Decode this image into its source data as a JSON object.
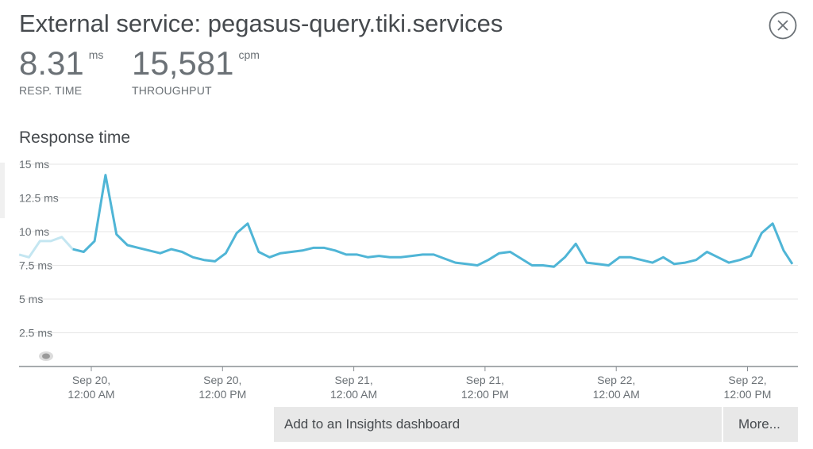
{
  "header": {
    "title": "External service: pegasus-query.tiki.services",
    "close_icon": "close-circle-icon"
  },
  "metrics": {
    "resp_time": {
      "value": "8.31",
      "unit": "ms",
      "label": "RESP. TIME"
    },
    "throughput": {
      "value": "15,581",
      "unit": "cpm",
      "label": "THROUGHPUT"
    }
  },
  "chart": {
    "title": "Response time"
  },
  "chart_data": {
    "type": "line",
    "title": "Response time",
    "xlabel": "",
    "ylabel": "",
    "ylim": [
      0,
      15
    ],
    "y_ticks": [
      {
        "value": 2.5,
        "label": "2.5 ms"
      },
      {
        "value": 5,
        "label": "5 ms"
      },
      {
        "value": 7.5,
        "label": "7.5 ms"
      },
      {
        "value": 10,
        "label": "10 ms"
      },
      {
        "value": 12.5,
        "label": "12.5 ms"
      },
      {
        "value": 15,
        "label": "15 ms"
      }
    ],
    "x_ticks": [
      {
        "hours": 0,
        "line1": "Sep 20,",
        "line2": "12:00 AM"
      },
      {
        "hours": 12,
        "line1": "Sep 20,",
        "line2": "12:00 PM"
      },
      {
        "hours": 24,
        "line1": "Sep 21,",
        "line2": "12:00 AM"
      },
      {
        "hours": 36,
        "line1": "Sep 21,",
        "line2": "12:00 PM"
      },
      {
        "hours": 48,
        "line1": "Sep 22,",
        "line2": "12:00 AM"
      },
      {
        "hours": 60,
        "line1": "Sep 22,",
        "line2": "12:00 PM"
      }
    ],
    "grid": true,
    "color": "#4fb5d6",
    "faded_color": "#c4e6f1",
    "series": [
      {
        "x_hours": [
          -6.6,
          -5.7,
          -4.7,
          -3.7,
          -2.7,
          -1.7,
          -0.7,
          0.3,
          1.3,
          2.3,
          3.3,
          4.3,
          5.3,
          6.3,
          7.3,
          8.3,
          9.3,
          10.3,
          11.3,
          12.3,
          13.3,
          14.3,
          15.3,
          16.3,
          17.3,
          18.3,
          19.3,
          20.3,
          21.3,
          22.3,
          23.3,
          24.3,
          25.3,
          26.3,
          27.3,
          28.3,
          29.3,
          30.3,
          31.3,
          32.3,
          33.3,
          34.3,
          35.3,
          36.3,
          37.3,
          38.3,
          39.3,
          40.3,
          41.3,
          42.3,
          43.3,
          44.3,
          45.3,
          46.3,
          47.3,
          48.3,
          49.3,
          50.3,
          51.3,
          52.3,
          53.3,
          54.3,
          55.3,
          56.3,
          57.3,
          58.3,
          59.3,
          60.3,
          61.3,
          62.3,
          63.3,
          64.1
        ],
        "values": [
          8.3,
          8.1,
          9.3,
          9.3,
          9.6,
          8.7,
          8.5,
          9.3,
          14.2,
          9.8,
          9.0,
          8.8,
          8.6,
          8.4,
          8.7,
          8.5,
          8.1,
          7.9,
          7.8,
          8.4,
          9.9,
          10.6,
          8.5,
          8.1,
          8.4,
          8.5,
          8.6,
          8.8,
          8.8,
          8.6,
          8.3,
          8.3,
          8.1,
          8.2,
          8.1,
          8.1,
          8.2,
          8.3,
          8.3,
          8.0,
          7.7,
          7.6,
          7.5,
          7.9,
          8.4,
          8.5,
          8.0,
          7.5,
          7.5,
          7.4,
          8.1,
          9.1,
          7.7,
          7.6,
          7.5,
          8.1,
          8.1,
          7.9,
          7.7,
          8.1,
          7.6,
          7.7,
          7.9,
          8.5,
          8.1,
          7.7,
          7.9,
          8.2,
          9.9,
          10.6,
          8.6,
          7.6
        ],
        "faded_count": 5
      }
    ]
  },
  "actions": {
    "insights_label": "Add to an Insights dashboard",
    "more_label": "More..."
  }
}
